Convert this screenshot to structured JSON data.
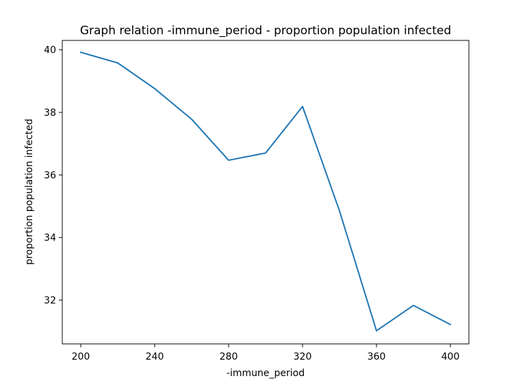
{
  "chart_data": {
    "type": "line",
    "title": "Graph relation -immune_period - proportion population infected",
    "xlabel": "-immune_period",
    "ylabel": "proportion population infected",
    "xlim": [
      190,
      410
    ],
    "ylim": [
      30.6,
      40.3
    ],
    "x_ticks": [
      200,
      240,
      280,
      320,
      360,
      400
    ],
    "y_ticks": [
      32,
      34,
      36,
      38,
      40
    ],
    "grid": false,
    "series": [
      {
        "color": "#1f77b4",
        "x": [
          200,
          220,
          240,
          260,
          280,
          300,
          320,
          340,
          360,
          380,
          400
        ],
        "y": [
          39.92,
          39.58,
          38.76,
          37.78,
          36.47,
          36.7,
          38.19,
          34.85,
          31.02,
          31.83,
          31.22
        ]
      }
    ]
  }
}
